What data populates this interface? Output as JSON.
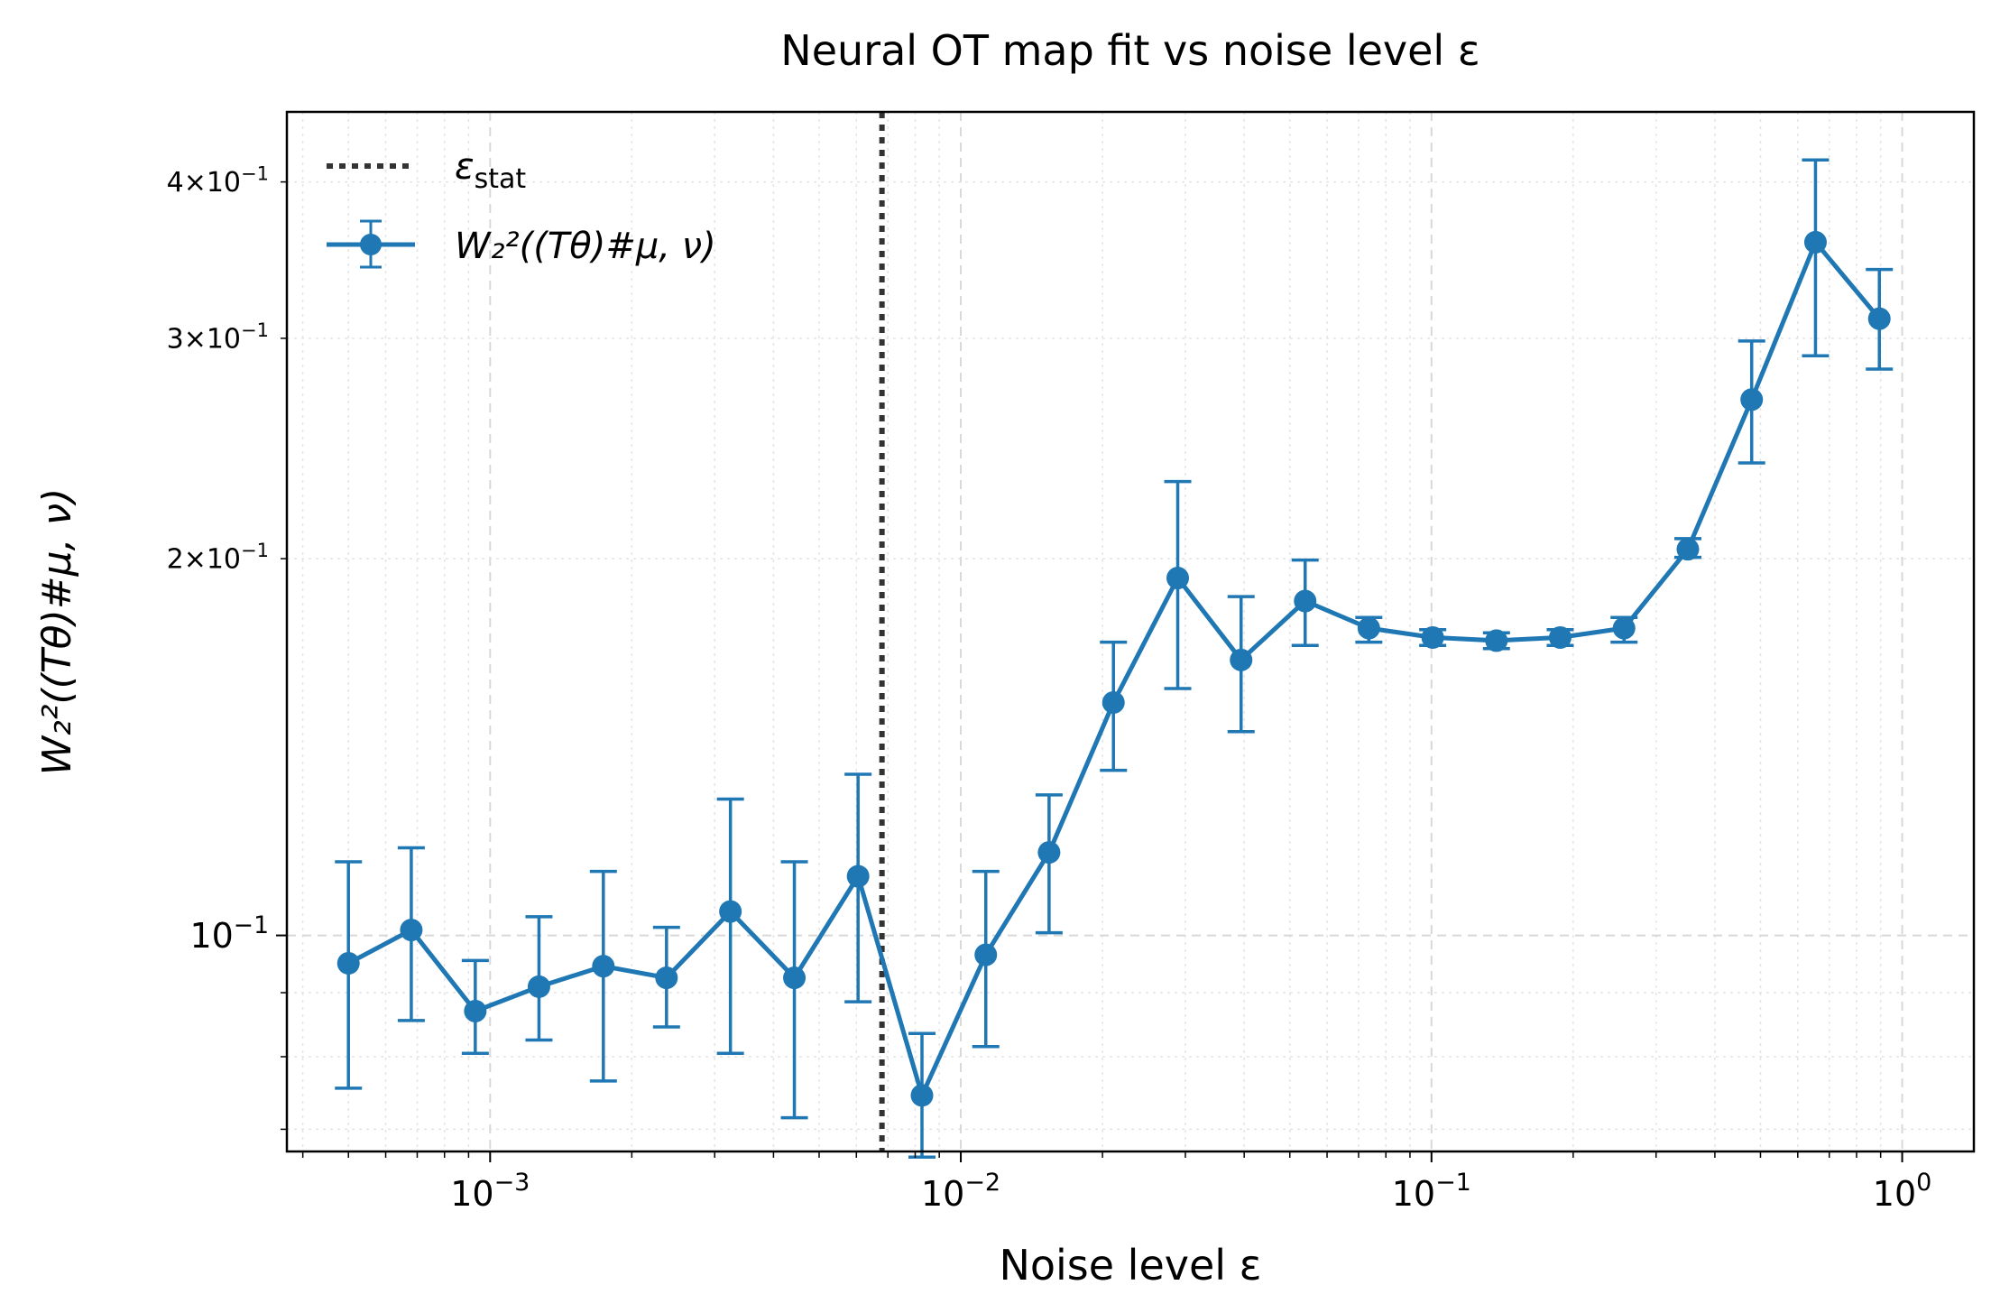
{
  "chart_data": {
    "type": "line",
    "title": "Neural OT map fit vs noise level ε",
    "xlabel": "Noise level ε",
    "ylabel": "W₂²((Tθ)#μ, ν)",
    "xscale": "log",
    "yscale": "log",
    "xlim": [
      0.00037,
      1.42
    ],
    "ylim": [
      0.0672,
      0.455
    ],
    "grid": true,
    "legend_position": "top-left",
    "x_ticks": [
      {
        "value": 0.001,
        "base": "10",
        "exp": "−3"
      },
      {
        "value": 0.01,
        "base": "10",
        "exp": "−2"
      },
      {
        "value": 0.1,
        "base": "10",
        "exp": "−1"
      },
      {
        "value": 1,
        "base": "10",
        "exp": "0"
      }
    ],
    "y_ticks": [
      {
        "value": 0.1,
        "label_base": "10",
        "label_exp": "−1",
        "mult": ""
      },
      {
        "value": 0.2,
        "label_base": "10",
        "label_exp": "−1",
        "mult": "2×"
      },
      {
        "value": 0.3,
        "label_base": "10",
        "label_exp": "−1",
        "mult": "3×"
      },
      {
        "value": 0.4,
        "label_base": "10",
        "label_exp": "−1",
        "mult": "4×"
      }
    ],
    "vline": {
      "name": "ε_stat",
      "label_main": "ε",
      "label_sub": "stat",
      "x": 0.0068,
      "color": "#333333"
    },
    "series": [
      {
        "name": "W₂²((Tθ)#μ, ν)",
        "color": "#1f77b4",
        "x": [
          0.0005,
          0.00068,
          0.00093,
          0.00127,
          0.00174,
          0.00237,
          0.00324,
          0.00443,
          0.00605,
          0.00827,
          0.0113,
          0.0154,
          0.0211,
          0.0289,
          0.0394,
          0.0539,
          0.0736,
          0.1006,
          0.1374,
          0.1877,
          0.2565,
          0.3505,
          0.4789,
          0.6544,
          0.8943
        ],
        "y": [
          0.095,
          0.101,
          0.087,
          0.091,
          0.0945,
          0.0925,
          0.1045,
          0.0925,
          0.1115,
          0.0745,
          0.0965,
          0.1165,
          0.1535,
          0.193,
          0.166,
          0.185,
          0.176,
          0.173,
          0.172,
          0.173,
          0.176,
          0.2035,
          0.268,
          0.358,
          0.311
        ],
        "err_low": [
          0.0755,
          0.0855,
          0.0805,
          0.0825,
          0.0765,
          0.0845,
          0.0805,
          0.0715,
          0.0885,
          0.0665,
          0.0815,
          0.1005,
          0.1355,
          0.1575,
          0.1455,
          0.1705,
          0.1715,
          0.1705,
          0.1695,
          0.1705,
          0.1715,
          0.2005,
          0.2385,
          0.2905,
          0.2835
        ],
        "err_high": [
          0.1145,
          0.1175,
          0.0955,
          0.1035,
          0.1125,
          0.1015,
          0.1285,
          0.1145,
          0.1345,
          0.0835,
          0.1125,
          0.1295,
          0.1715,
          0.2305,
          0.1865,
          0.1995,
          0.1795,
          0.1755,
          0.1745,
          0.1755,
          0.1795,
          0.2075,
          0.2985,
          0.4165,
          0.3405
        ]
      }
    ]
  }
}
